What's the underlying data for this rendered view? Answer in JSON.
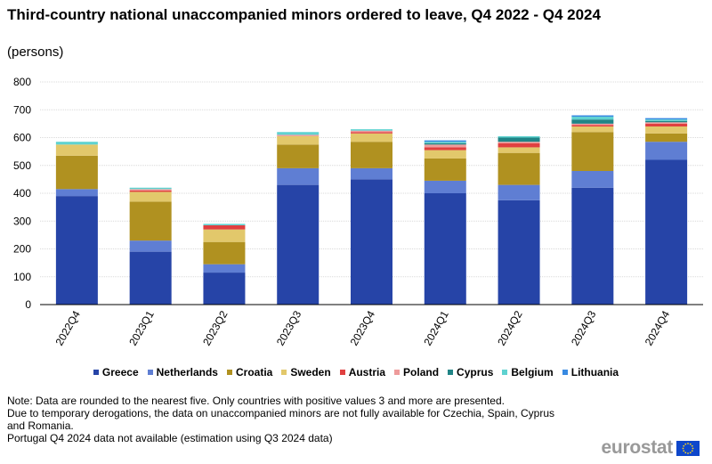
{
  "title": "Third-country national unaccompanied minors ordered to leave, Q4 2022 - Q4 2024",
  "subtitle": "(persons)",
  "notes": [
    "Note: Data are rounded to the nearest five. Only countries with positive values 3 and more are presented.",
    "Due to temporary derogations, the data on unaccompanied minors are not fully available for Czechia, Spain, Cyprus",
    "and Romania.",
    "Portugal Q4 2024 data not available (estimation using Q3 2024 data)"
  ],
  "brand": {
    "name": "eurostat",
    "logo_icon": "eu-flag-icon"
  },
  "chart_data": {
    "type": "bar",
    "stacked": true,
    "title": "Third-country national unaccompanied minors ordered to leave, Q4 2022 - Q4 2024",
    "subtitle": "(persons)",
    "categories": [
      "2022Q4",
      "2023Q1",
      "2023Q2",
      "2023Q3",
      "2023Q4",
      "2024Q1",
      "2024Q2",
      "2024Q3",
      "2024Q4"
    ],
    "ylim": [
      0,
      800
    ],
    "yticks": [
      0,
      100,
      200,
      300,
      400,
      500,
      600,
      700,
      800
    ],
    "grid": true,
    "legend_position": "bottom",
    "series": [
      {
        "name": "Greece",
        "color": "#2644a7",
        "values": [
          390,
          190,
          115,
          430,
          450,
          400,
          375,
          420,
          520
        ]
      },
      {
        "name": "Netherlands",
        "color": "#5f7ed3",
        "values": [
          25,
          40,
          30,
          60,
          40,
          45,
          55,
          60,
          65
        ]
      },
      {
        "name": "Croatia",
        "color": "#b09120",
        "values": [
          120,
          140,
          80,
          85,
          95,
          80,
          115,
          140,
          30
        ]
      },
      {
        "name": "Sweden",
        "color": "#e2c86b",
        "values": [
          40,
          35,
          45,
          30,
          30,
          30,
          20,
          20,
          25
        ]
      },
      {
        "name": "Austria",
        "color": "#e04040",
        "values": [
          0,
          5,
          15,
          0,
          5,
          10,
          15,
          5,
          10
        ]
      },
      {
        "name": "Poland",
        "color": "#ee9b9b",
        "values": [
          0,
          5,
          0,
          5,
          5,
          10,
          5,
          5,
          5
        ]
      },
      {
        "name": "Cyprus",
        "color": "#208486",
        "values": [
          0,
          0,
          0,
          0,
          0,
          5,
          15,
          15,
          5
        ]
      },
      {
        "name": "Belgium",
        "color": "#5fd2d0",
        "values": [
          10,
          5,
          5,
          10,
          5,
          5,
          5,
          10,
          5
        ]
      },
      {
        "name": "Lithuania",
        "color": "#388ae2",
        "values": [
          0,
          0,
          0,
          0,
          0,
          5,
          0,
          5,
          5
        ]
      }
    ]
  }
}
